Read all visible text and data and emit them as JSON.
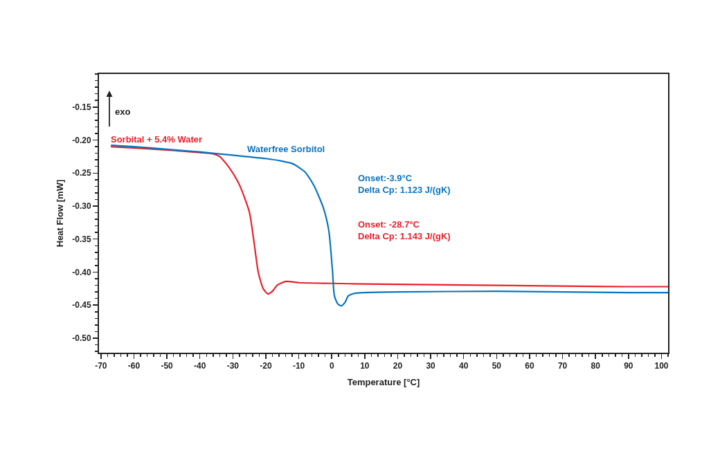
{
  "chart_data": {
    "type": "line",
    "xlabel": "Temperature [°C]",
    "ylabel": "Heat Flow [mW]",
    "xlim": [
      -70.6,
      102
    ],
    "xticks": [
      -70,
      -60,
      -50,
      -40,
      -30,
      -20,
      -10,
      0,
      10,
      20,
      30,
      40,
      50,
      60,
      70,
      80,
      90,
      100
    ],
    "ylim": [
      -0.522,
      -0.1
    ],
    "yticks": [
      {
        "value": -0.5,
        "label": "-0.50"
      },
      -0.45,
      {
        "value": -0.4,
        "label": "-0.40"
      },
      -0.35,
      {
        "value": -0.3,
        "label": "-0.30"
      },
      -0.25,
      {
        "value": -0.2,
        "label": "-0.20"
      },
      -0.15
    ],
    "grid": false,
    "legend": false,
    "marker": "none",
    "line_style": "solid",
    "series": [
      {
        "name": "Sorbital + 5.4% Water",
        "color": "#e8202a",
        "x": [
          -67,
          -60,
          -50,
          -40,
          -36,
          -34,
          -32,
          -30,
          -27.8,
          -25,
          -23.6,
          -22.3,
          -20.8,
          -19.4,
          -18,
          -16.6,
          -13.9,
          -10,
          0,
          10,
          30,
          50,
          70,
          90,
          102
        ],
        "values": [
          -0.21,
          -0.212,
          -0.215,
          -0.219,
          -0.221,
          -0.225,
          -0.236,
          -0.25,
          -0.27,
          -0.309,
          -0.354,
          -0.4,
          -0.425,
          -0.433,
          -0.429,
          -0.42,
          -0.414,
          -0.416,
          -0.417,
          -0.418,
          -0.419,
          -0.42,
          -0.421,
          -0.422,
          -0.422
        ]
      },
      {
        "name": "Waterfree Sorbitol",
        "color": "#0a74c0",
        "x": [
          -67,
          -60,
          -50,
          -40,
          -30,
          -20,
          -15,
          -11.8,
          -8.2,
          -5.5,
          -2.6,
          -0.9,
          0.2,
          0.8,
          1.8,
          2.9,
          4,
          5,
          7.1,
          10,
          20,
          50,
          70,
          90,
          102
        ],
        "values": [
          -0.208,
          -0.21,
          -0.214,
          -0.218,
          -0.223,
          -0.228,
          -0.232,
          -0.236,
          -0.248,
          -0.268,
          -0.302,
          -0.337,
          -0.397,
          -0.436,
          -0.448,
          -0.451,
          -0.446,
          -0.436,
          -0.432,
          -0.431,
          -0.43,
          -0.429,
          -0.43,
          -0.431,
          -0.431
        ]
      }
    ],
    "annotations": [
      "exo",
      "Onset: -28.7°C\nDelta Cp: 1.143 J/(gK)",
      "Onset:-3.9°C\nDelta Cp: 1.123 J/(gK)"
    ]
  }
}
